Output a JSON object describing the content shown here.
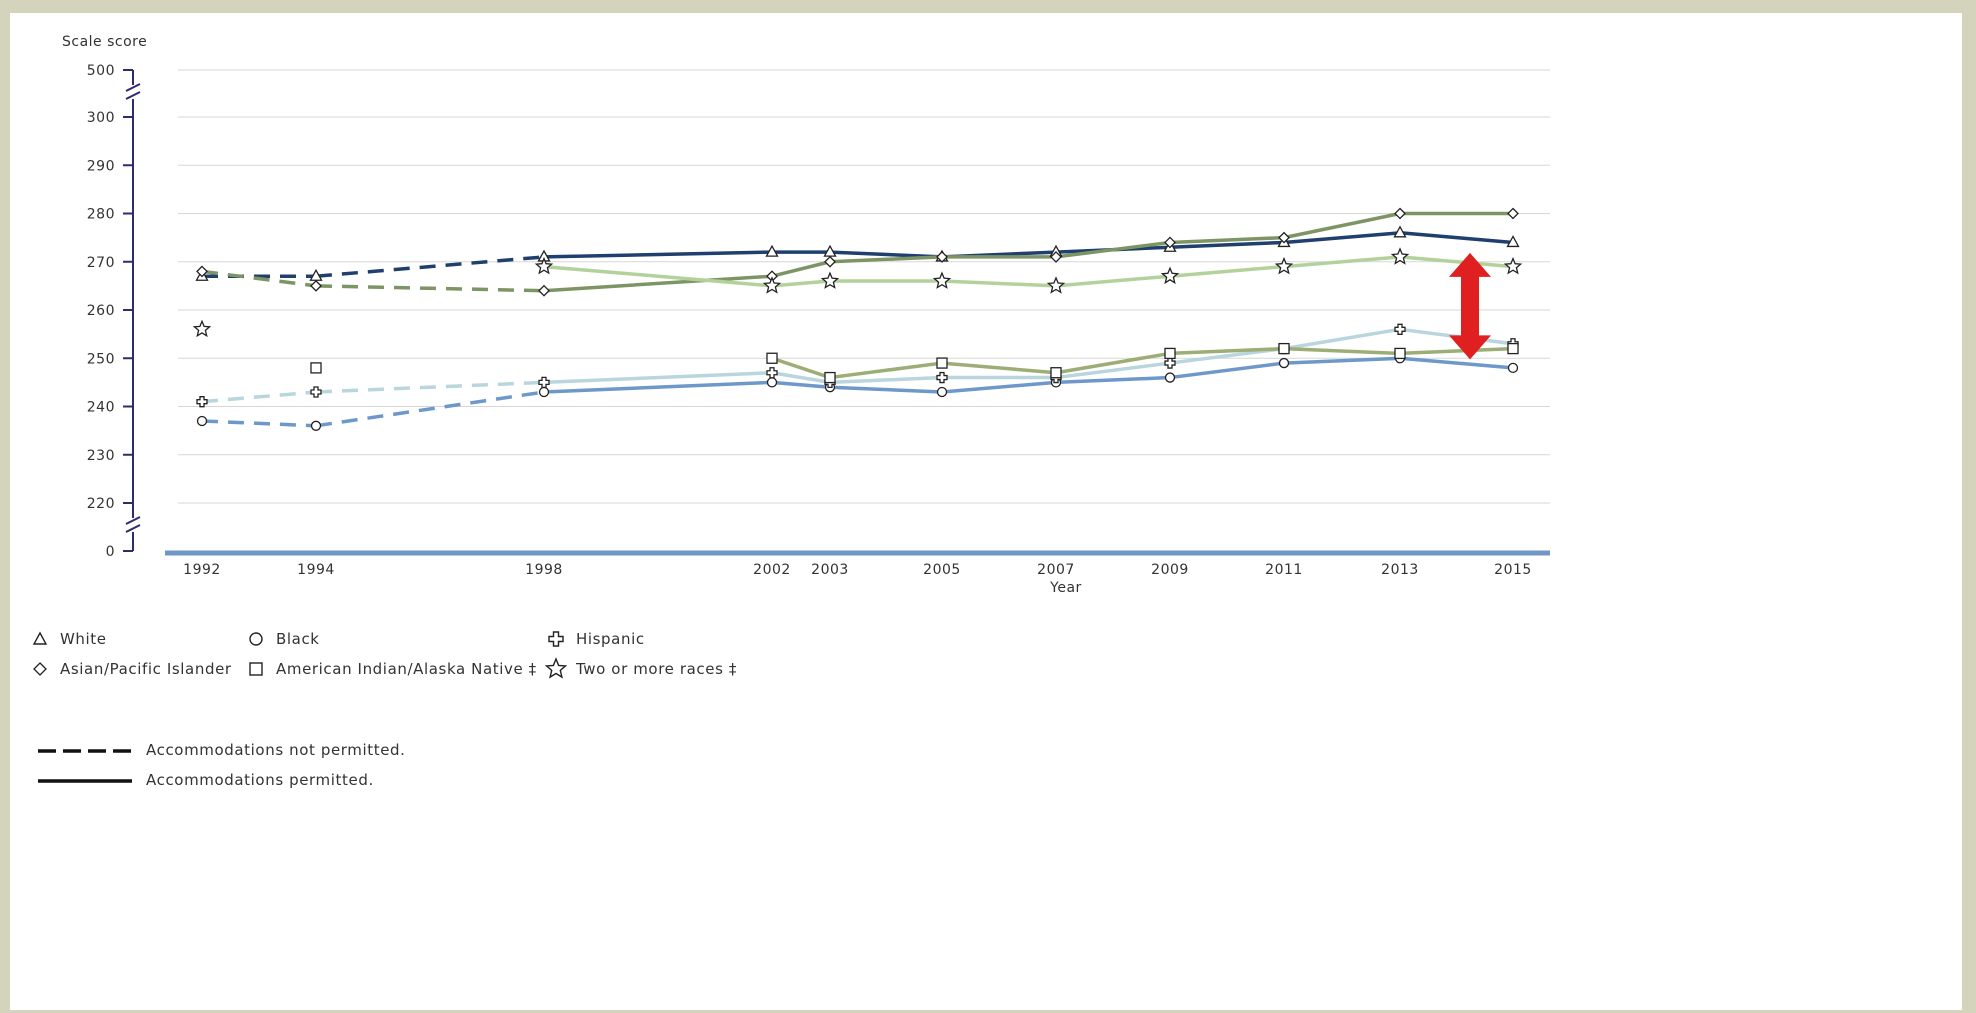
{
  "chart_data": {
    "type": "line",
    "ylabel": "Scale score",
    "xlabel": "Year",
    "x": [
      1992,
      1994,
      1998,
      2002,
      2003,
      2005,
      2007,
      2009,
      2011,
      2013,
      2015
    ],
    "y_ticks": [
      0,
      220,
      230,
      240,
      250,
      260,
      270,
      280,
      290,
      300,
      500
    ],
    "y_axis_break": "0–220 and 300–500 ranges compressed",
    "grid": true,
    "dashed_segment_years": [
      1992,
      1994,
      1998
    ],
    "series": [
      {
        "name": "White",
        "marker": "triangle",
        "color": "#1f3f6e",
        "values": [
          267,
          267,
          271,
          272,
          272,
          271,
          272,
          273,
          274,
          276,
          274
        ]
      },
      {
        "name": "Black",
        "marker": "circle",
        "color": "#6d98c9",
        "values": [
          237,
          236,
          243,
          245,
          244,
          243,
          245,
          246,
          249,
          250,
          248
        ]
      },
      {
        "name": "Hispanic",
        "marker": "cross",
        "color": "#b9d5dd",
        "values": [
          241,
          243,
          245,
          247,
          245,
          246,
          246,
          249,
          252,
          256,
          253
        ]
      },
      {
        "name": "Asian/Pacific Islander",
        "marker": "diamond",
        "color": "#7d9564",
        "values": [
          268,
          265,
          264,
          267,
          270,
          271,
          271,
          274,
          275,
          280,
          280
        ]
      },
      {
        "name": "American Indian/Alaska Native ‡",
        "marker": "square",
        "color": "#9cad75",
        "values": [
          null,
          248,
          null,
          250,
          246,
          249,
          247,
          251,
          252,
          251,
          252
        ]
      },
      {
        "name": "Two or more races ‡",
        "marker": "star",
        "color": "#b3d29b",
        "values": [
          256,
          null,
          269,
          265,
          266,
          266,
          265,
          267,
          269,
          271,
          269
        ]
      }
    ],
    "annotation": "red double-headed arrow between 2013 and 2015 spanning roughly 250–270"
  },
  "legend": {
    "items": [
      {
        "label": "White",
        "icon": "triangle-icon"
      },
      {
        "label": "Black",
        "icon": "circle-icon"
      },
      {
        "label": "Hispanic",
        "icon": "cross-icon"
      },
      {
        "label": "Asian/Pacific Islander",
        "icon": "diamond-icon"
      },
      {
        "label": "American Indian/Alaska Native ‡",
        "icon": "square-icon"
      },
      {
        "label": "Two or more races ‡",
        "icon": "star-icon"
      }
    ],
    "line_styles": [
      {
        "label": "Accommodations not permitted.",
        "style": "dashed"
      },
      {
        "label": "Accommodations permitted.",
        "style": "solid"
      }
    ]
  },
  "colors": {
    "frame": "#d4d4bd",
    "axis": "#2d2d6e",
    "baseline": "#6f96c6",
    "arrow": "#e02020"
  }
}
